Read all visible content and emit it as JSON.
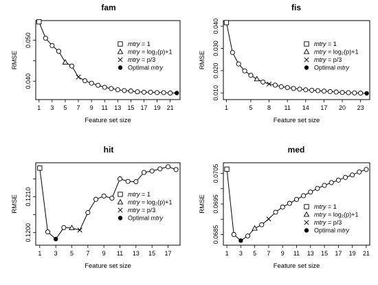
{
  "chart_data": [
    {
      "type": "line",
      "title": "fam",
      "xlabel": "Feature set size",
      "ylabel": "RMSE",
      "xlim": [
        0.5,
        22.5
      ],
      "ylim": [
        0.0355,
        0.0548
      ],
      "xticks": [
        1,
        3,
        5,
        7,
        9,
        11,
        13,
        15,
        17,
        19,
        21
      ],
      "xtick_labels": [
        "1",
        "3",
        "5",
        "7",
        "9",
        "11",
        "13",
        "15",
        "17",
        "19",
        "21"
      ],
      "yticks": [
        0.04,
        0.045,
        0.05
      ],
      "ytick_labels": [
        "0.040",
        "",
        "0.050"
      ],
      "x": [
        1,
        2,
        3,
        4,
        5,
        6,
        7,
        8,
        9,
        10,
        11,
        12,
        13,
        14,
        15,
        16,
        17,
        18,
        19,
        20,
        21,
        22
      ],
      "y": [
        0.0545,
        0.0505,
        0.0487,
        0.0473,
        0.0446,
        0.0437,
        0.041,
        0.0401,
        0.0395,
        0.039,
        0.0385,
        0.0382,
        0.0379,
        0.0377,
        0.0376,
        0.0374,
        0.0373,
        0.0373,
        0.0372,
        0.0372,
        0.0371,
        0.0371
      ],
      "markers": {
        "mtry_1": 1,
        "mtry_log2": 5,
        "mtry_p3": 7,
        "optimal": 22
      },
      "legend_position": "right"
    },
    {
      "type": "line",
      "title": "fis",
      "xlabel": "Feature set size",
      "ylabel": "RMSE",
      "xlim": [
        0.5,
        24.5
      ],
      "ylim": [
        0.007,
        0.0425
      ],
      "xticks": [
        1,
        5,
        8,
        11,
        14,
        17,
        20,
        23
      ],
      "xtick_labels": [
        "1",
        "5",
        "8",
        "11",
        "14",
        "17",
        "20",
        "23"
      ],
      "yticks": [
        0.01,
        0.02,
        0.03,
        0.04
      ],
      "ytick_labels": [
        "0.010",
        "0.020",
        "0.030",
        "0.040"
      ],
      "x": [
        1,
        2,
        3,
        4,
        5,
        6,
        7,
        8,
        9,
        10,
        11,
        12,
        13,
        14,
        15,
        16,
        17,
        18,
        19,
        20,
        21,
        22,
        23,
        24
      ],
      "y": [
        0.0416,
        0.0282,
        0.023,
        0.0199,
        0.0179,
        0.0162,
        0.0149,
        0.014,
        0.0135,
        0.0128,
        0.0124,
        0.012,
        0.0117,
        0.0114,
        0.0112,
        0.011,
        0.0108,
        0.0106,
        0.0104,
        0.0102,
        0.0101,
        0.01,
        0.0099,
        0.0098
      ],
      "markers": {
        "mtry_1": 1,
        "mtry_log2": 6,
        "mtry_p3": 8,
        "optimal": 24
      },
      "legend_position": "right"
    },
    {
      "type": "line",
      "title": "hit",
      "xlabel": "Feature set size",
      "ylabel": "RMSE",
      "xlim": [
        0.5,
        18.5
      ],
      "ylim": [
        0.11965,
        0.12195
      ],
      "xticks": [
        1,
        3,
        5,
        7,
        9,
        11,
        13,
        15,
        17
      ],
      "xtick_labels": [
        "1",
        "3",
        "5",
        "7",
        "9",
        "11",
        "13",
        "15",
        "17"
      ],
      "yticks": [
        0.12,
        0.1205,
        0.121,
        0.1215
      ],
      "ytick_labels": [
        "0.1200",
        "",
        "0.1210",
        ""
      ],
      "x": [
        1,
        2,
        3,
        4,
        5,
        6,
        7,
        8,
        9,
        10,
        11,
        12,
        13,
        14,
        15,
        16,
        17,
        18
      ],
      "y": [
        0.1218,
        0.12002,
        0.11982,
        0.12014,
        0.12013,
        0.12007,
        0.12056,
        0.12093,
        0.12102,
        0.12096,
        0.1215,
        0.12143,
        0.12142,
        0.12168,
        0.12172,
        0.12178,
        0.12184,
        0.12176
      ],
      "markers": {
        "mtry_1": 1,
        "mtry_log2": 5,
        "mtry_p3": 6,
        "optimal": 3
      },
      "legend_position": "center-right"
    },
    {
      "type": "line",
      "title": "med",
      "xlabel": "Feature set size",
      "ylabel": "RMSE",
      "xlim": [
        0.5,
        21.5
      ],
      "ylim": [
        0.06815,
        0.07085
      ],
      "xticks": [
        1,
        3,
        5,
        7,
        9,
        11,
        13,
        15,
        17,
        19,
        21
      ],
      "xtick_labels": [
        "1",
        "3",
        "5",
        "7",
        "9",
        "11",
        "13",
        "15",
        "17",
        "19",
        "21"
      ],
      "yticks": [
        0.0685,
        0.069,
        0.0695,
        0.07,
        0.0705
      ],
      "ytick_labels": [
        "0.0685",
        "",
        "0.0695",
        "",
        "0.0705"
      ],
      "x": [
        1,
        2,
        3,
        4,
        5,
        6,
        7,
        8,
        9,
        10,
        11,
        12,
        13,
        14,
        15,
        16,
        17,
        18,
        19,
        20,
        21
      ],
      "y": [
        0.07064,
        0.0685,
        0.0683,
        0.06845,
        0.0687,
        0.06882,
        0.06901,
        0.06923,
        0.0694,
        0.06952,
        0.06965,
        0.06977,
        0.06989,
        0.07001,
        0.07011,
        0.0702,
        0.07028,
        0.07037,
        0.07045,
        0.07055,
        0.07063
      ],
      "markers": {
        "mtry_1": 1,
        "mtry_log2": 5,
        "mtry_p3": 7,
        "optimal": 3
      },
      "legend_position": "bottom-right"
    }
  ],
  "legend": {
    "items": [
      {
        "symbol": "square",
        "prefix": "mtry",
        "suffix": " = 1"
      },
      {
        "symbol": "triangle",
        "prefix": "mtry",
        "suffix": " = log₂(p)+1"
      },
      {
        "symbol": "cross",
        "prefix": "mtry",
        "suffix": " = p/3"
      },
      {
        "symbol": "dot",
        "prefix": "Optimal ",
        "suffix": "mtry"
      }
    ]
  }
}
